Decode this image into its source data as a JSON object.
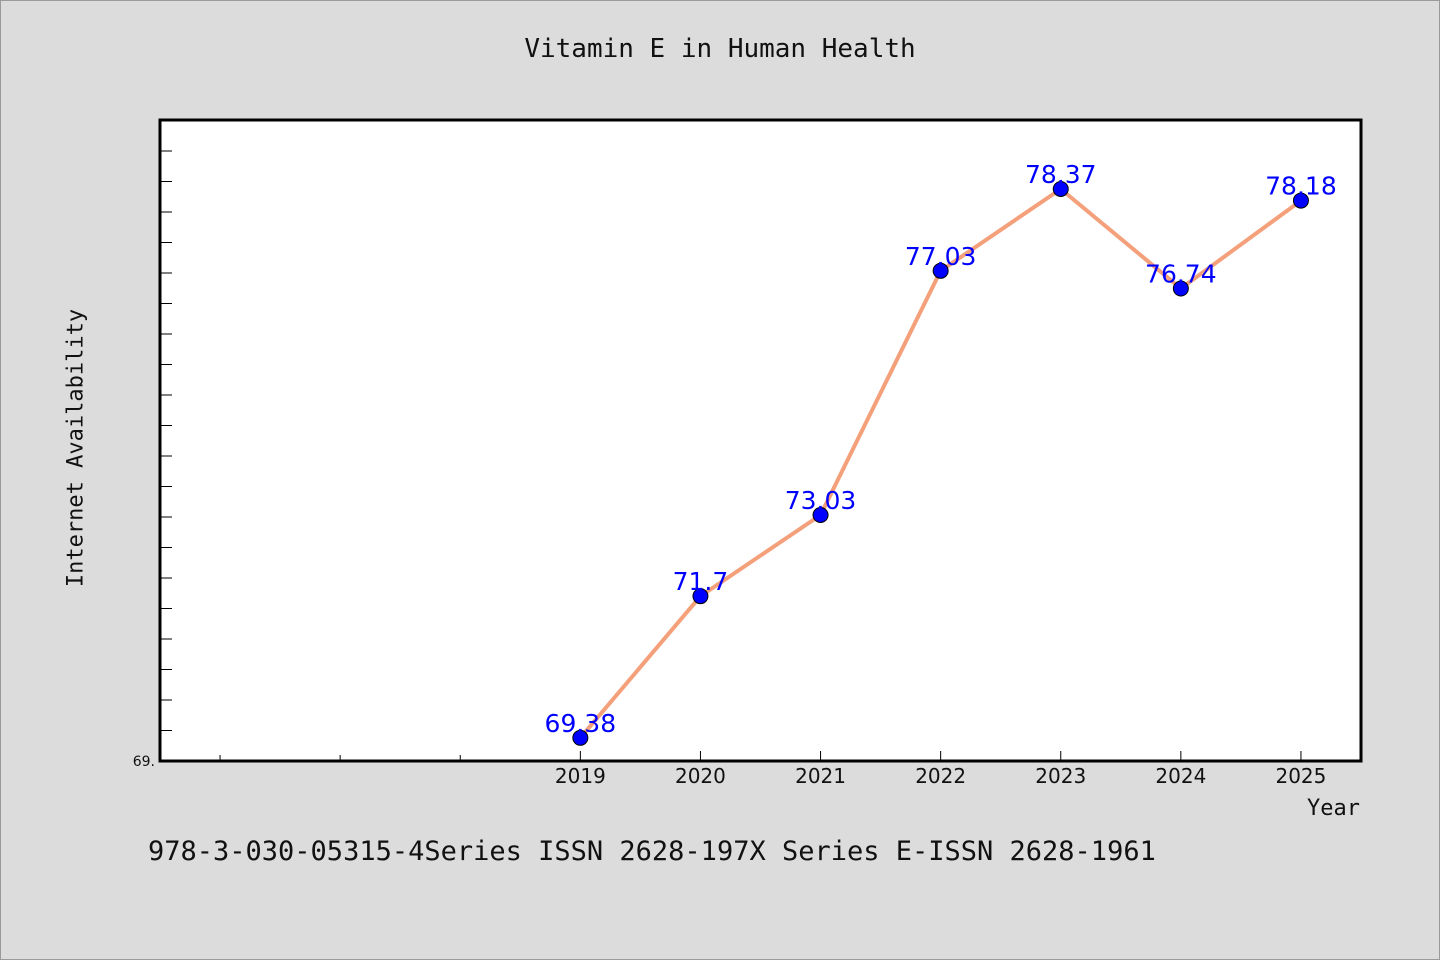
{
  "chart_data": {
    "type": "line",
    "title": "Vitamin E in Human Health",
    "xlabel": "Year",
    "ylabel": "Internet Availability",
    "x": [
      2019,
      2020,
      2021,
      2022,
      2023,
      2024,
      2025
    ],
    "categories": [
      "2019",
      "2020",
      "2021",
      "2022",
      "2023",
      "2024",
      "2025"
    ],
    "series": [
      {
        "values": [
          69.38,
          71.7,
          73.03,
          77.03,
          78.37,
          76.74,
          78.18
        ],
        "labels": [
          "69.38",
          "71.7",
          "73.03",
          "77.03",
          "78.37",
          "76.74",
          "78.18"
        ]
      }
    ],
    "xlim": [
      2015.5,
      2025.5
    ],
    "ylim": [
      69.0,
      79.5
    ],
    "y_tick_label": "69.",
    "grid": false,
    "legend": "none",
    "colors": {
      "line": "#f4a07a",
      "marker": "#0000ff",
      "label": "#0000ff",
      "background": "#dcdcdc",
      "plot_area": "#ffffff"
    }
  },
  "footer": {
    "text": "978-3-030-05315-4Series ISSN 2628-197X Series E-ISSN 2628-1961"
  }
}
